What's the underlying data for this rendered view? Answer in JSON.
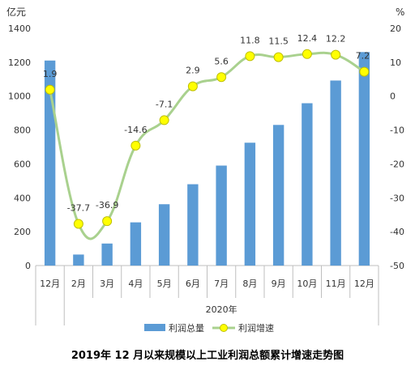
{
  "chart_data": {
    "type": "bar+line",
    "title": "2019年 12 月以来规模以上工业利润总额累计增速走势图",
    "categories": [
      "12月",
      "2月",
      "3月",
      "4月",
      "5月",
      "6月",
      "7月",
      "8月",
      "9月",
      "10月",
      "11月",
      "12月"
    ],
    "year_group_label": "2020年",
    "left_axis": {
      "unit": "亿元",
      "ylim": [
        0,
        1400
      ],
      "ticks": [
        "0",
        "200",
        "400",
        "600",
        "800",
        "1000",
        "1200",
        "1400"
      ]
    },
    "right_axis": {
      "unit": "%",
      "ylim": [
        -50,
        20
      ],
      "ticks": [
        "-50",
        "-40",
        "-30",
        "-20",
        "-10",
        "0",
        "10",
        "20"
      ]
    },
    "series": [
      {
        "name": "利润总量",
        "type": "bar",
        "axis": "left",
        "color": "#5b9bd5",
        "values": [
          1210,
          65,
          130,
          255,
          362,
          480,
          590,
          725,
          830,
          958,
          1092,
          1260
        ]
      },
      {
        "name": "利润增速",
        "type": "line",
        "axis": "right",
        "color": "#a9d18e",
        "marker_color": "#ffff00",
        "values": [
          1.9,
          -37.7,
          -36.9,
          -14.6,
          -7.1,
          2.9,
          5.6,
          11.8,
          11.5,
          12.4,
          12.2,
          7.2
        ],
        "labels": [
          "1.9",
          "-37.7",
          "-36.9",
          "-14.6",
          "-7.1",
          "2.9",
          "5.6",
          "11.8",
          "11.5",
          "12.4",
          "12.2",
          "7.2"
        ]
      }
    ],
    "legend": {
      "placement": "bottom"
    },
    "grid": false
  }
}
